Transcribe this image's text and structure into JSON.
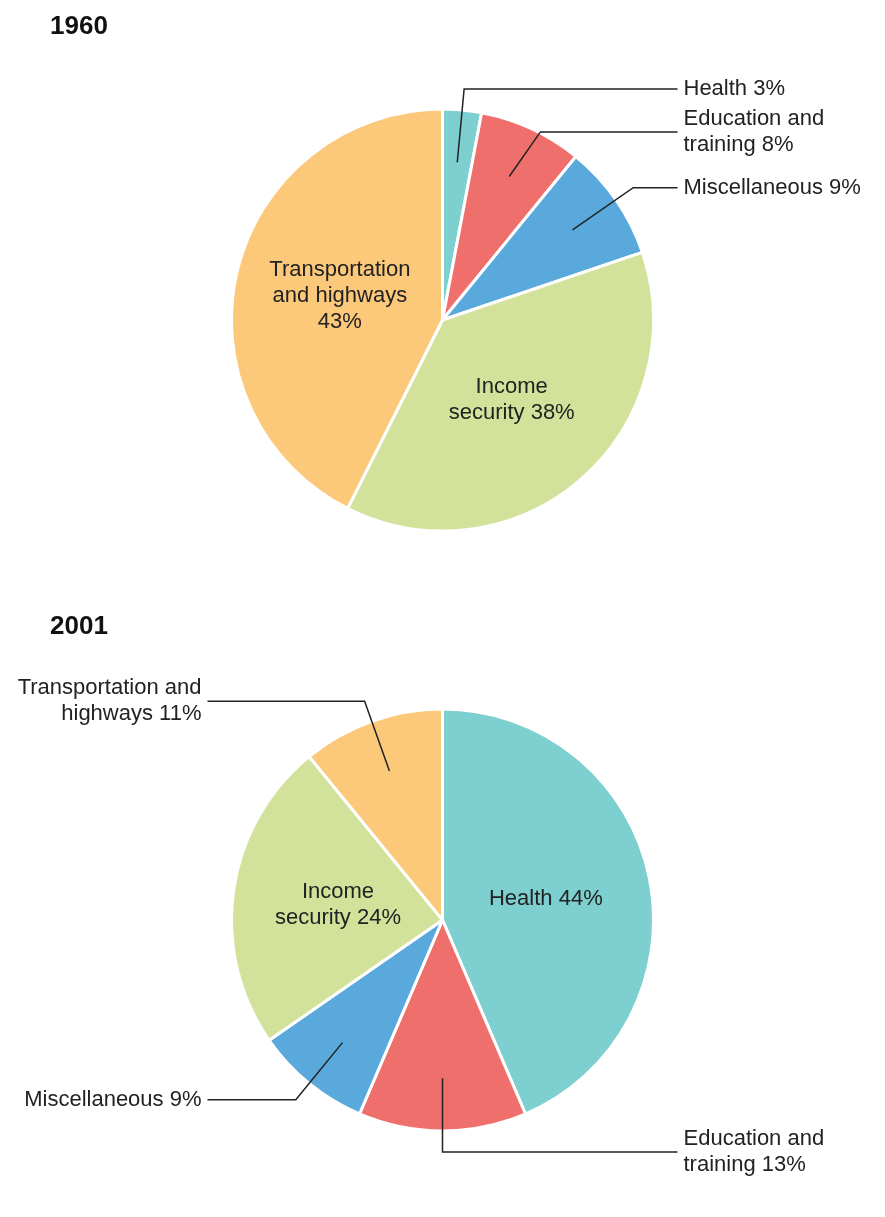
{
  "chart_data": [
    {
      "type": "pie",
      "title": "1960",
      "categories": [
        "Health",
        "Education and training",
        "Miscellaneous",
        "Income security",
        "Transportation and highways"
      ],
      "values": [
        3,
        8,
        9,
        38,
        43
      ],
      "colors": [
        "#7ecfd0",
        "#ef6f6c",
        "#5aa9dc",
        "#d3e29a",
        "#fcc97a"
      ],
      "value_labels": [
        "3%",
        "8%",
        "9%",
        "38%",
        "43%"
      ]
    },
    {
      "type": "pie",
      "title": "2001",
      "categories": [
        "Health",
        "Education and training",
        "Miscellaneous",
        "Income security",
        "Transportation and highways"
      ],
      "values": [
        44,
        13,
        9,
        24,
        11
      ],
      "colors": [
        "#7ecfd0",
        "#ef6f6c",
        "#5aa9dc",
        "#d3e29a",
        "#fcc97a"
      ],
      "value_labels": [
        "44%",
        "13%",
        "9%",
        "24%",
        "11%"
      ]
    }
  ]
}
